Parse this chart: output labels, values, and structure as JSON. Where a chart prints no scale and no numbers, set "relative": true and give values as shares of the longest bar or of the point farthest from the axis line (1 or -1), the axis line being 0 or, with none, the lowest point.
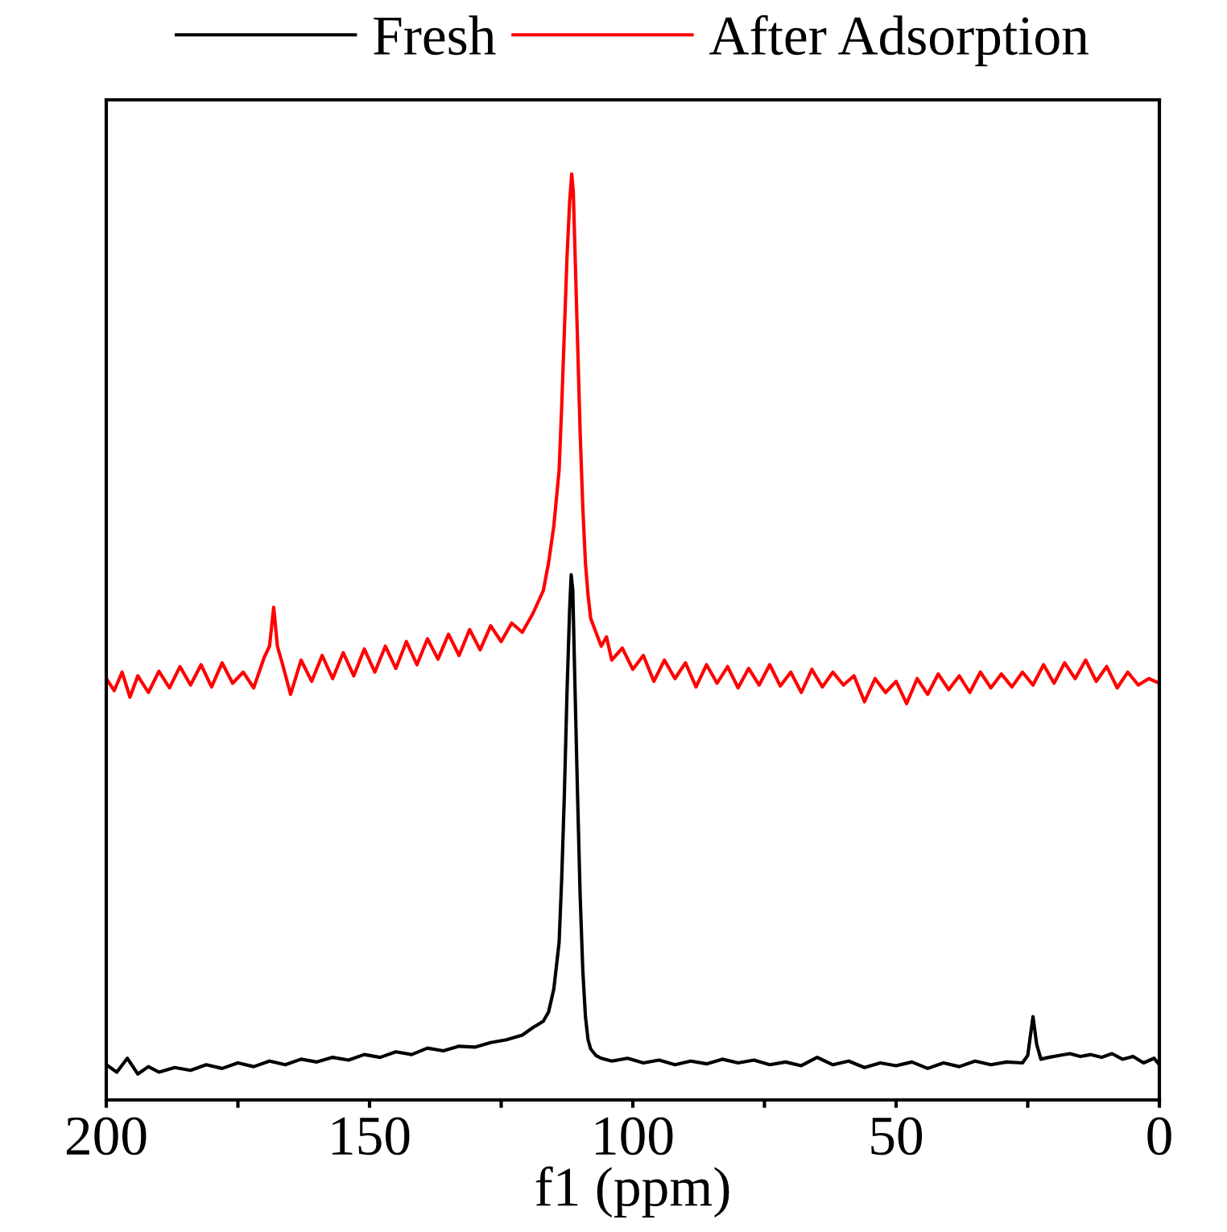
{
  "chart_data": {
    "type": "line",
    "relative": true,
    "xlabel": "f1 (ppm)",
    "xlim": [
      200,
      0
    ],
    "xticks": [
      200,
      {
        "value": 175,
        "label": null
      },
      150,
      {
        "value": 125,
        "label": null
      },
      100,
      {
        "value": 75,
        "label": null
      },
      50,
      {
        "value": 25,
        "label": null
      },
      0
    ],
    "legend": "top",
    "grid": false,
    "tick_labels": "x",
    "line_style": "solid",
    "marker": "none",
    "series": [
      {
        "name": "Fresh",
        "color": "#000000",
        "x": [
          200,
          198,
          196,
          194,
          192,
          190,
          187,
          184,
          181,
          178,
          175,
          172,
          169,
          166,
          163,
          160,
          157,
          154,
          151,
          148,
          145,
          142,
          139,
          136,
          133,
          130,
          127,
          124,
          121,
          119,
          117,
          116,
          115,
          114,
          113.5,
          113,
          112.5,
          112,
          111.7,
          111.4,
          111,
          110.5,
          110,
          109.5,
          109,
          108.5,
          108,
          107,
          106,
          104,
          101,
          98,
          95,
          92,
          89,
          86,
          83,
          80,
          77,
          74,
          71,
          68,
          65,
          62,
          59,
          56,
          53,
          50,
          47,
          44,
          41,
          38,
          35,
          32,
          29,
          26,
          25,
          24,
          23.3,
          22.5,
          21,
          19,
          17,
          15,
          13,
          11,
          9,
          7,
          5,
          3,
          1,
          0
        ],
        "values": [
          0.038,
          0.03,
          0.045,
          0.028,
          0.036,
          0.03,
          0.035,
          0.032,
          0.038,
          0.034,
          0.04,
          0.036,
          0.042,
          0.038,
          0.044,
          0.041,
          0.046,
          0.043,
          0.049,
          0.046,
          0.052,
          0.049,
          0.056,
          0.053,
          0.058,
          0.057,
          0.062,
          0.065,
          0.07,
          0.078,
          0.085,
          0.095,
          0.12,
          0.17,
          0.24,
          0.33,
          0.44,
          0.53,
          0.567,
          0.55,
          0.45,
          0.33,
          0.22,
          0.14,
          0.09,
          0.065,
          0.055,
          0.048,
          0.045,
          0.042,
          0.045,
          0.04,
          0.043,
          0.038,
          0.042,
          0.039,
          0.044,
          0.04,
          0.043,
          0.038,
          0.041,
          0.037,
          0.046,
          0.038,
          0.042,
          0.035,
          0.04,
          0.037,
          0.041,
          0.034,
          0.04,
          0.036,
          0.042,
          0.038,
          0.041,
          0.04,
          0.048,
          0.09,
          0.06,
          0.044,
          0.046,
          0.048,
          0.05,
          0.047,
          0.049,
          0.046,
          0.05,
          0.044,
          0.047,
          0.04,
          0.045,
          0.038
        ]
      },
      {
        "name": "After Adsorption",
        "color": "#ff0000",
        "x": [
          200,
          198.5,
          197,
          195.5,
          194,
          192,
          190,
          188,
          186,
          184,
          182,
          180,
          178,
          176,
          174,
          172,
          170,
          169,
          168.2,
          167.5,
          166.5,
          165,
          163,
          161,
          159,
          157,
          155,
          153,
          151,
          149,
          147,
          145,
          143,
          141,
          139,
          137,
          135,
          133,
          131,
          129,
          127,
          125,
          123,
          121,
          119,
          117,
          116,
          115,
          114,
          113.5,
          113,
          112.5,
          112,
          111.6,
          111.3,
          111,
          110.5,
          110,
          109.5,
          109,
          108.5,
          108,
          107,
          106,
          105,
          104,
          102,
          100,
          98,
          96,
          94,
          92,
          90,
          88,
          86,
          84,
          82,
          80,
          78,
          76,
          74,
          72,
          70,
          68,
          66,
          64,
          62,
          60,
          58,
          56,
          54,
          52,
          50,
          48,
          46,
          44,
          42,
          40,
          38,
          36,
          34,
          32,
          30,
          28,
          26,
          24,
          22,
          20,
          18,
          16,
          14,
          12,
          10,
          8,
          6,
          4,
          2,
          0
        ],
        "values": [
          0.455,
          0.442,
          0.462,
          0.435,
          0.458,
          0.44,
          0.463,
          0.445,
          0.468,
          0.448,
          0.47,
          0.446,
          0.472,
          0.45,
          0.462,
          0.445,
          0.478,
          0.49,
          0.532,
          0.49,
          0.47,
          0.438,
          0.475,
          0.452,
          0.48,
          0.455,
          0.483,
          0.458,
          0.487,
          0.462,
          0.49,
          0.466,
          0.495,
          0.47,
          0.498,
          0.476,
          0.503,
          0.48,
          0.508,
          0.486,
          0.512,
          0.495,
          0.515,
          0.505,
          0.525,
          0.55,
          0.58,
          0.62,
          0.68,
          0.75,
          0.83,
          0.91,
          0.97,
          1.0,
          0.98,
          0.92,
          0.82,
          0.72,
          0.64,
          0.58,
          0.545,
          0.52,
          0.505,
          0.49,
          0.5,
          0.475,
          0.488,
          0.465,
          0.48,
          0.452,
          0.475,
          0.455,
          0.472,
          0.446,
          0.47,
          0.45,
          0.468,
          0.445,
          0.466,
          0.448,
          0.47,
          0.447,
          0.462,
          0.44,
          0.465,
          0.446,
          0.462,
          0.448,
          0.458,
          0.43,
          0.455,
          0.44,
          0.452,
          0.428,
          0.455,
          0.438,
          0.46,
          0.443,
          0.458,
          0.44,
          0.462,
          0.445,
          0.46,
          0.446,
          0.462,
          0.448,
          0.47,
          0.45,
          0.472,
          0.455,
          0.475,
          0.452,
          0.468,
          0.445,
          0.462,
          0.448,
          0.455,
          0.45
        ]
      }
    ]
  }
}
